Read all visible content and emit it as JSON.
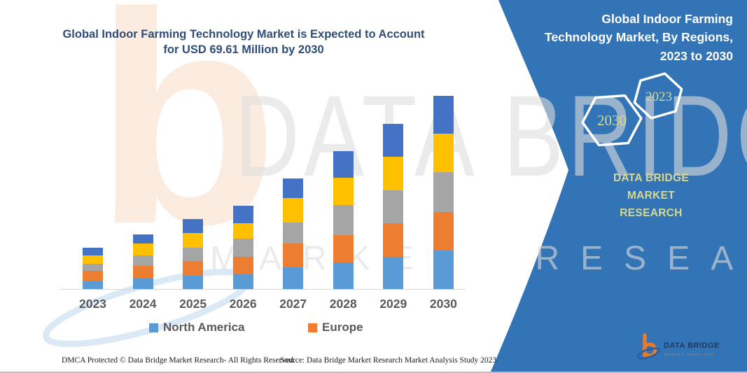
{
  "page": {
    "title_lines": [
      "Global Indoor Farming Technology Market is Expected to Account",
      "for USD 69.61 Million by 2030"
    ]
  },
  "panel": {
    "heading_lines": [
      "Global Indoor Farming",
      "Technology Market, By Regions,",
      "2023 to 2030"
    ],
    "hexagon_years": {
      "back": "2030",
      "front": "2023"
    },
    "brand_lines": [
      "DATA BRIDGE MARKET",
      "RESEARCH"
    ],
    "logo": {
      "name": "DATA BRIDGE",
      "tagline": "MARKET RESEARCH"
    },
    "background_color": "#3274B5",
    "accent_text_color": "#D9DA8E"
  },
  "watermark": {
    "big_text": "DATA BRIDGE",
    "spaced_text": "MARKET RESEARCH",
    "logo_letter": "b"
  },
  "chart_data": {
    "type": "bar",
    "stacked": true,
    "title": "Global Indoor Farming Technology Market is Expected to Account for USD 69.61 Million by 2030",
    "unit": "USD Million",
    "categories": [
      "2023",
      "2024",
      "2025",
      "2026",
      "2027",
      "2028",
      "2029",
      "2030"
    ],
    "series": [
      {
        "name": "North America",
        "color": "#5B9BD5",
        "in_legend": true,
        "values": [
          2.8,
          4.0,
          4.8,
          5.3,
          7.8,
          9.6,
          11.6,
          13.9
        ]
      },
      {
        "name": "Europe",
        "color": "#ED7D31",
        "in_legend": true,
        "values": [
          3.8,
          4.3,
          5.3,
          6.3,
          8.6,
          9.8,
          12.1,
          13.9
        ]
      },
      {
        "name": "",
        "color": "#A5A5A5",
        "in_legend": false,
        "values": [
          2.5,
          3.8,
          4.8,
          6.6,
          7.6,
          10.8,
          11.9,
          14.4
        ]
      },
      {
        "name": "",
        "color": "#FFC000",
        "in_legend": false,
        "values": [
          3.0,
          4.3,
          5.3,
          5.5,
          8.8,
          9.8,
          12.1,
          13.9
        ]
      },
      {
        "name": "",
        "color": "#4472C4",
        "in_legend": false,
        "values": [
          2.8,
          3.3,
          5.0,
          6.3,
          7.1,
          9.6,
          11.9,
          13.5
        ]
      }
    ],
    "stack_totals": [
      14.9,
      19.7,
      25.2,
      30.0,
      39.9,
      49.6,
      59.6,
      69.61
    ],
    "legend_entries": [
      "North America",
      "Europe"
    ],
    "legend_position": "bottom",
    "ylim": [
      0,
      70
    ],
    "gridlines": false,
    "y_axis_visible": false,
    "x_baseline_color": "#D9D9D9"
  },
  "footer": {
    "dmca": "DMCA Protected © Data Bridge Market Research-  All Rights Reserved.",
    "source": "Source: Data Bridge Market Research  Market Analysis Study 2023"
  }
}
